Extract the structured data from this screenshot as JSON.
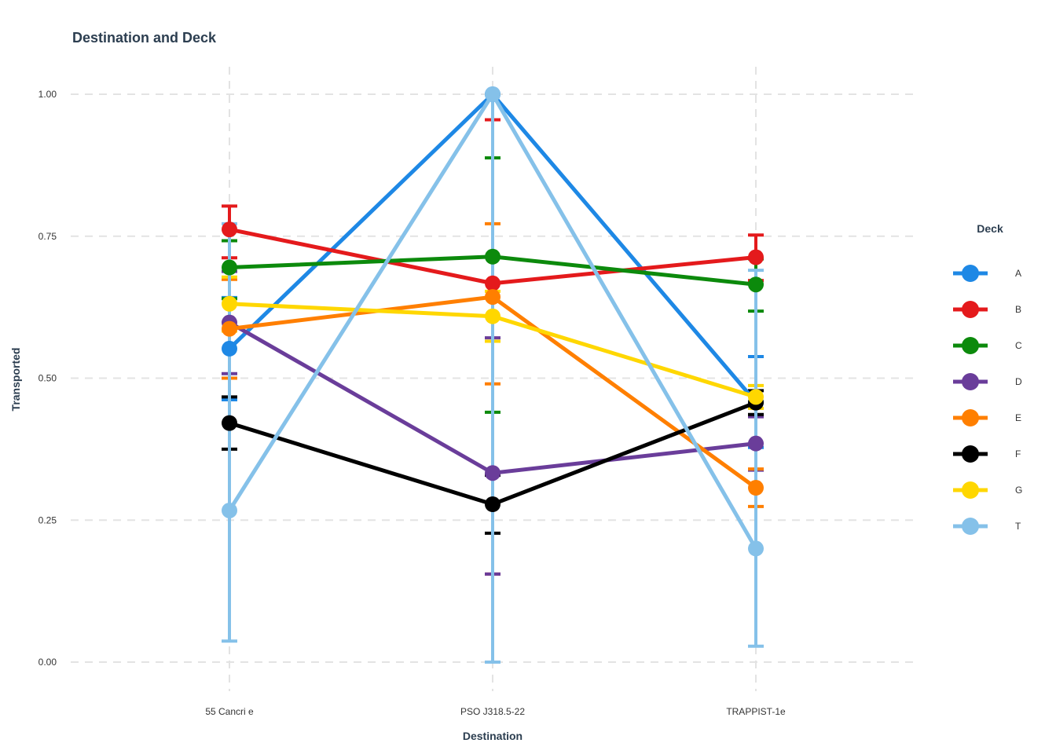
{
  "chart_data": {
    "type": "line",
    "title": "Destination and Deck",
    "xlabel": "Destination",
    "ylabel": "Transported",
    "categories": [
      "55 Cancri e",
      "PSO J318.5-22",
      "TRAPPIST-1e"
    ],
    "ylim": [
      0,
      1
    ],
    "yticks": [
      "0.00",
      "0.25",
      "0.50",
      "0.75",
      "1.00"
    ],
    "grid": true,
    "legend": {
      "title": "Deck",
      "position": "right"
    },
    "series": [
      {
        "name": "A",
        "color": "#1e88e5",
        "values": [
          0.552,
          1.0,
          0.458
        ],
        "lower": [
          0.462,
          1.0,
          0.378
        ],
        "upper": [
          0.642,
          1.0,
          0.538
        ]
      },
      {
        "name": "B",
        "color": "#e41a1c",
        "values": [
          0.762,
          0.667,
          0.713
        ],
        "lower": [
          0.712,
          0.155,
          0.672
        ],
        "upper": [
          0.803,
          0.955,
          0.752
        ]
      },
      {
        "name": "C",
        "color": "#0c8a0c",
        "values": [
          0.695,
          0.714,
          0.665
        ],
        "lower": [
          0.64,
          0.44,
          0.618
        ],
        "upper": [
          0.742,
          0.888,
          0.71
        ]
      },
      {
        "name": "D",
        "color": "#6a3d9a",
        "values": [
          0.598,
          0.333,
          0.385
        ],
        "lower": [
          0.508,
          0.155,
          0.338
        ],
        "upper": [
          0.688,
          0.571,
          0.432
        ]
      },
      {
        "name": "E",
        "color": "#ff7f00",
        "values": [
          0.587,
          0.643,
          0.307
        ],
        "lower": [
          0.5,
          0.49,
          0.274
        ],
        "upper": [
          0.674,
          0.772,
          0.34
        ]
      },
      {
        "name": "F",
        "color": "#000000",
        "values": [
          0.421,
          0.278,
          0.457
        ],
        "lower": [
          0.375,
          0.227,
          0.436
        ],
        "upper": [
          0.467,
          0.329,
          0.478
        ]
      },
      {
        "name": "G",
        "color": "#ffd700",
        "values": [
          0.631,
          0.609,
          0.467
        ],
        "lower": [
          0.583,
          0.565,
          0.447
        ],
        "upper": [
          0.678,
          0.653,
          0.487
        ]
      },
      {
        "name": "T",
        "color": "#85c1e9",
        "values": [
          0.267,
          1.0,
          0.2
        ],
        "lower": [
          0.037,
          0.0,
          0.028
        ],
        "upper": [
          0.772,
          1.0,
          0.69
        ]
      }
    ]
  }
}
